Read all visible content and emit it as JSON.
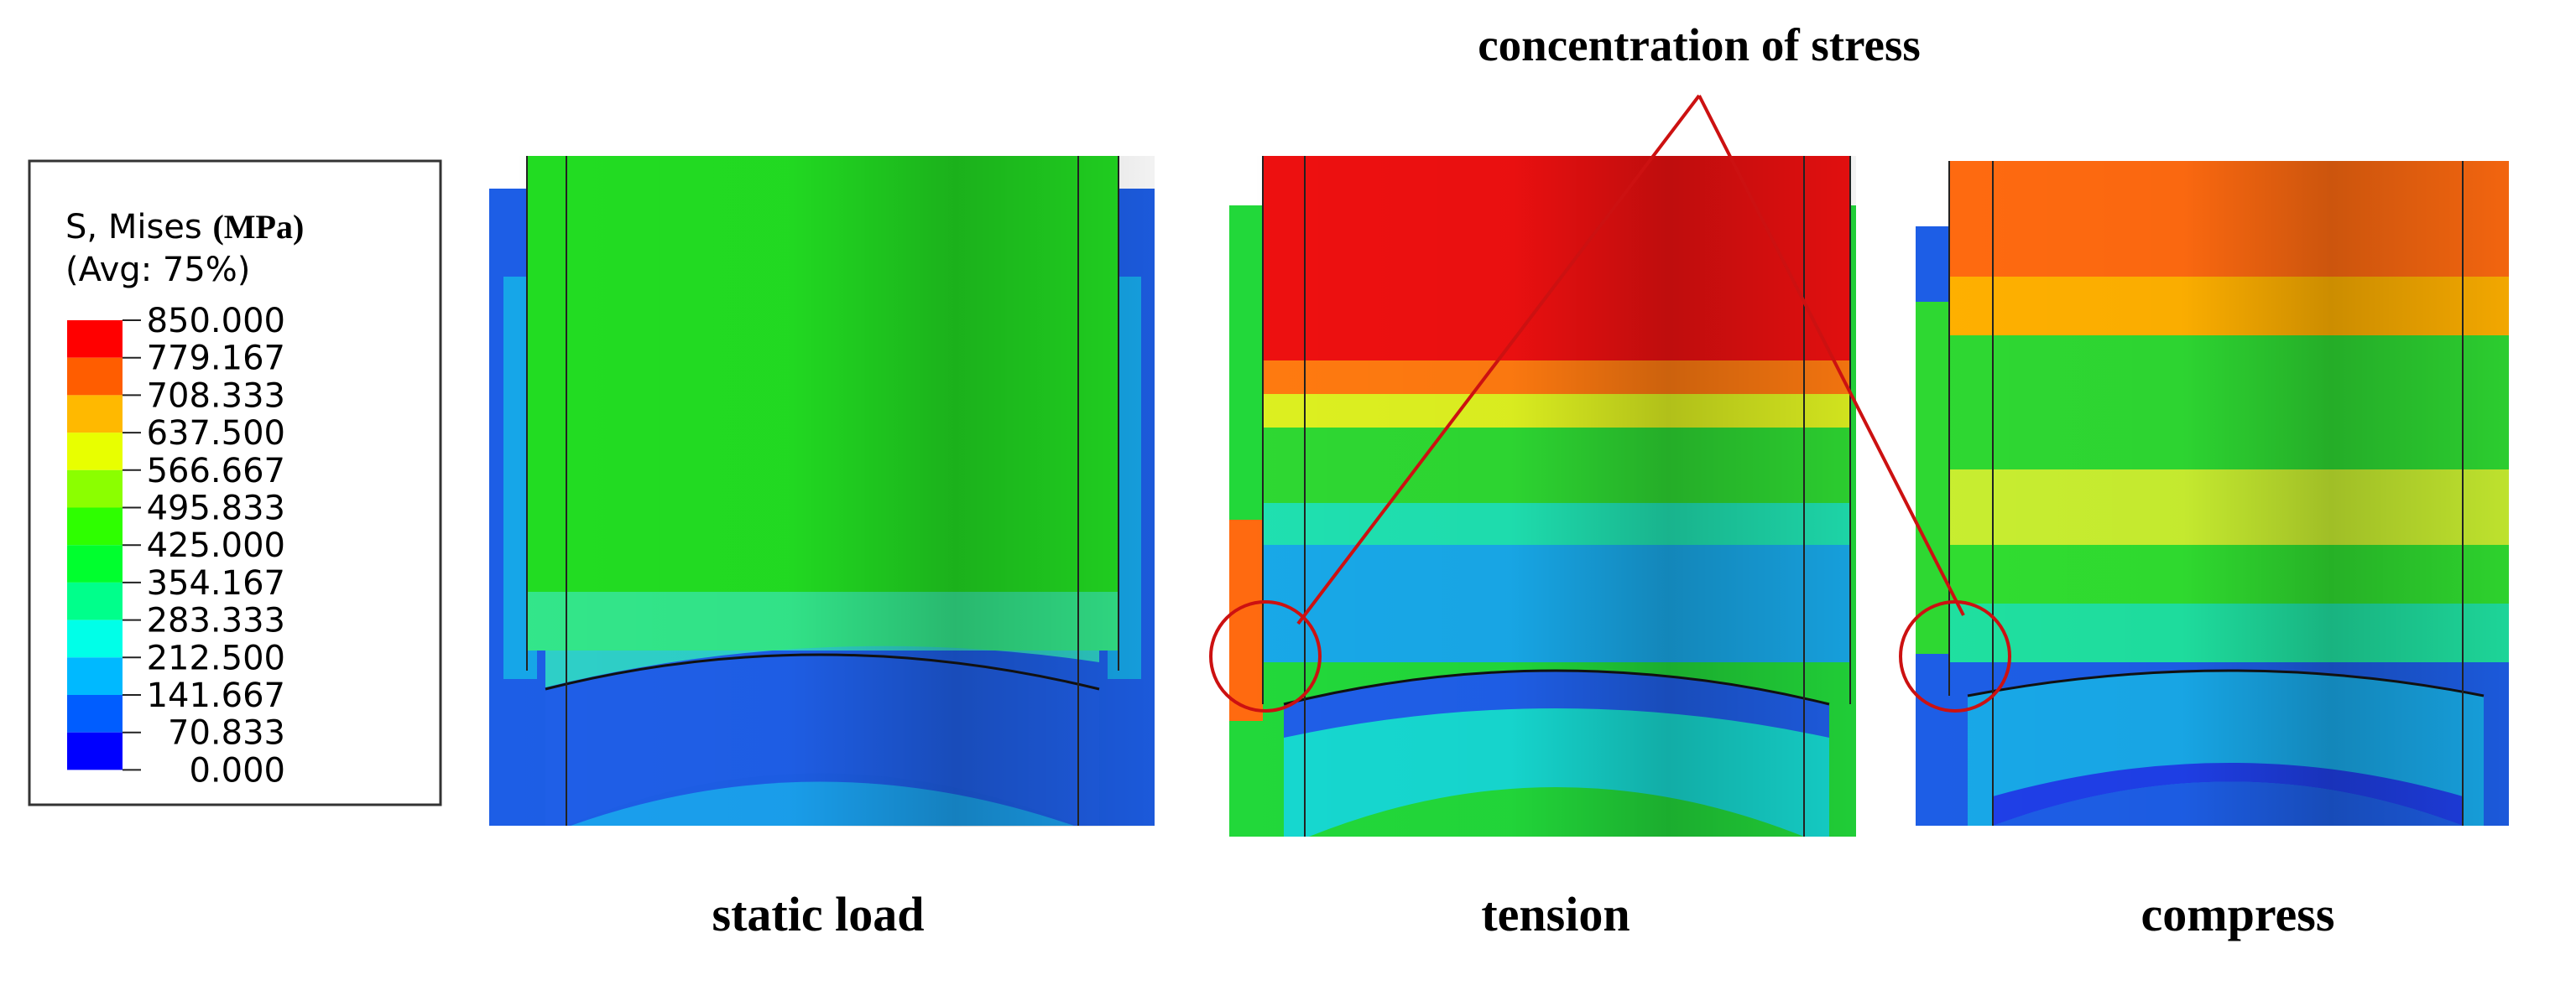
{
  "legend": {
    "title": "S, Mises",
    "unit": "(MPa)",
    "subtitle": "(Avg: 75%)",
    "levels": [
      "850.000",
      "779.167",
      "708.333",
      "637.500",
      "566.667",
      "495.833",
      "425.000",
      "354.167",
      "283.333",
      "212.500",
      "141.667",
      "70.833",
      "0.000"
    ],
    "colors": [
      "#ff0000",
      "#ff5d00",
      "#ffb900",
      "#e8ff00",
      "#8bff00",
      "#2eff00",
      "#00ff2e",
      "#00ff8b",
      "#00ffe8",
      "#00b9ff",
      "#005dff",
      "#0000ff"
    ]
  },
  "panels": [
    {
      "caption": "static load"
    },
    {
      "caption": "tension"
    },
    {
      "caption": "compress"
    }
  ],
  "annotation": "concentration of stress"
}
